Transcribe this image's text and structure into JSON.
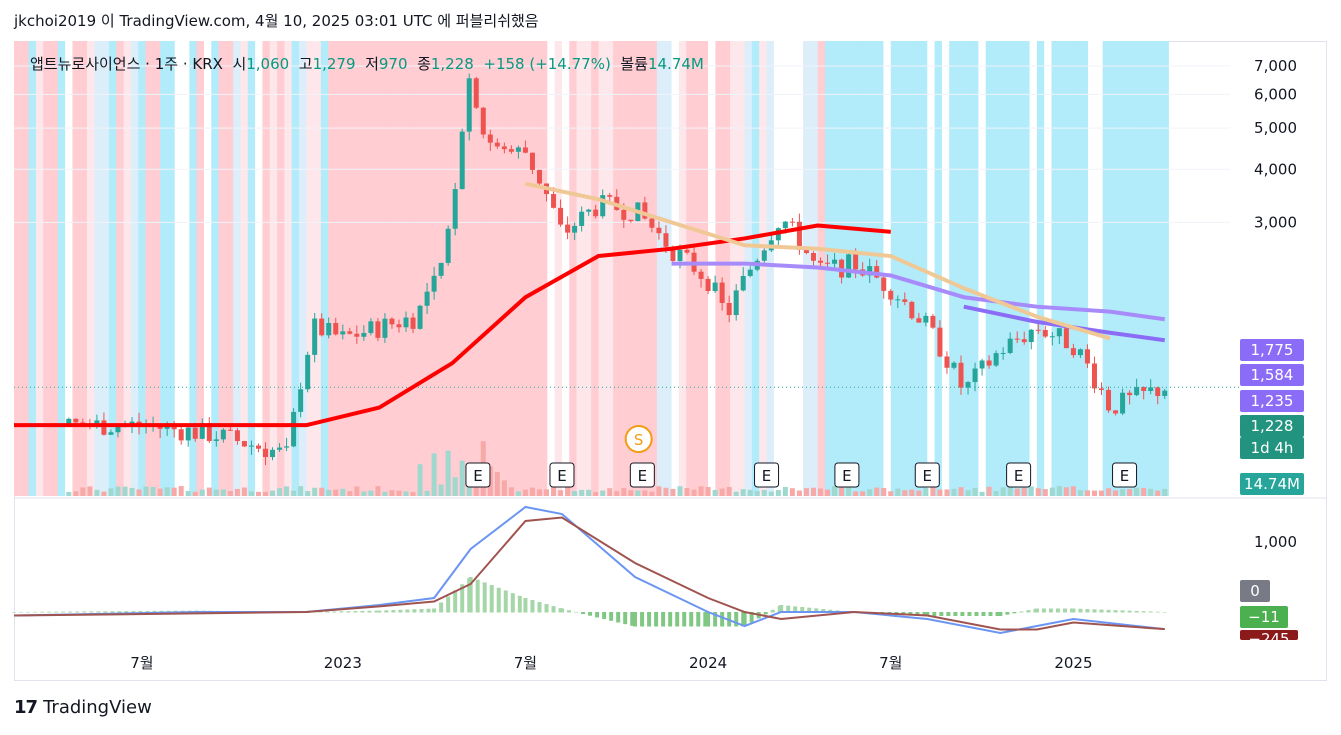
{
  "header": {
    "publish_line": "jkchoi2019 이 TradingView.com, 4월 10, 2025 03:01 UTC 에 퍼블리쉬했음"
  },
  "legend": {
    "symbol": "앱트뉴로사이언스 · 1주 · KRX",
    "open_label": "시",
    "open": "1,060",
    "high_label": "고",
    "high": "1,279",
    "low_label": "저",
    "low": "970",
    "close_label": "종",
    "close": "1,228",
    "change": "+158 (+14.77%)",
    "volume_label": "볼륨",
    "volume": "14.74M"
  },
  "price_badges": {
    "ma1": "1,775",
    "ma2": "1,584",
    "ma3": "1,235",
    "last": "1,228",
    "countdown": "1d 4h",
    "volume": "14.74M",
    "macd_zero": "0",
    "macd_hist": "−11",
    "macd_signal": "−245"
  },
  "colors": {
    "up": "#26a69a",
    "down": "#ef5350",
    "bg_blue": "#b2ebf9",
    "bg_lightblue": "#dbeefa",
    "bg_red": "#ffcdd2",
    "bg_pink": "#fde7ea",
    "ma_red": "#ff0000",
    "ma_purple": "#a78bfa",
    "ma_tan": "#f0c896",
    "ma_violet": "#8b6cf6",
    "macd": "#6b95f2",
    "signal": "#a05450",
    "hist_up": "#a5d6a7",
    "hist_down": "#81c784"
  },
  "footer": {
    "brand": "TradingView",
    "logo": "tradingview-logo"
  },
  "chart_data": {
    "type": "candlestick",
    "interval": "1주",
    "exchange": "KRX",
    "price_axis": {
      "ticks": [
        3000,
        4000,
        5000,
        6000,
        7000
      ],
      "tick_labels": [
        "3,000",
        "4,000",
        "5,000",
        "6,000",
        "7,000"
      ],
      "range": [
        700,
        7800
      ]
    },
    "time_axis": {
      "labels": [
        "7월",
        "2023",
        "7월",
        "2024",
        "7월",
        "2025"
      ]
    },
    "macd_axis": {
      "ticks": [
        1000
      ],
      "tick_labels": [
        "1,000"
      ],
      "range": [
        -400,
        1600
      ]
    },
    "price_path": {
      "times": [
        2022.25,
        2022.45,
        2022.65,
        2022.85,
        2022.92,
        2023.0,
        2023.1,
        2023.2,
        2023.27,
        2023.3,
        2023.35,
        2023.38,
        2023.42,
        2023.5,
        2023.6,
        2023.7,
        2023.8,
        2023.9,
        2024.0,
        2024.05,
        2024.1,
        2024.2,
        2024.3,
        2024.4,
        2024.5,
        2024.6,
        2024.7,
        2024.8,
        2024.9,
        2025.0,
        2025.1,
        2025.25
      ],
      "closes": [
        1000,
        1000,
        950,
        850,
        1700,
        1600,
        1700,
        1800,
        2300,
        3200,
        6800,
        5000,
        4400,
        4400,
        2800,
        3300,
        3200,
        2600,
        2200,
        1800,
        2200,
        3100,
        2300,
        2400,
        2100,
        1700,
        1200,
        1500,
        1700,
        1550,
        1100,
        1228
      ]
    },
    "ma_lines": [
      {
        "name": "",
        "color": "#ff0000",
        "times": [
          2022.1,
          2022.9,
          2023.1,
          2023.3,
          2023.5,
          2023.7,
          2023.9,
          2024.1,
          2024.3,
          2024.5
        ],
        "values": [
          1000,
          1000,
          1100,
          1400,
          2000,
          2500,
          2600,
          2750,
          2950,
          2850
        ]
      },
      {
        "name": "",
        "color": "#a78bfa",
        "times": [
          2023.9,
          2024.1,
          2024.3,
          2024.5,
          2024.7,
          2024.9,
          2025.1,
          2025.25
        ],
        "values": [
          2400,
          2400,
          2350,
          2250,
          2000,
          1900,
          1850,
          1775
        ]
      },
      {
        "name": "",
        "color": "#8b6cf6",
        "times": [
          2024.7,
          2024.9,
          2025.1,
          2025.25
        ],
        "values": [
          1900,
          1750,
          1650,
          1584
        ]
      },
      {
        "name": "",
        "color": "#f0c896",
        "times": [
          2023.5,
          2023.7,
          2023.9,
          2024.1,
          2024.3,
          2024.5,
          2024.7,
          2024.9,
          2025.1
        ],
        "values": [
          3700,
          3400,
          3000,
          2650,
          2600,
          2500,
          2100,
          1800,
          1600
        ]
      }
    ],
    "earnings_markers": {
      "label": "E",
      "times": [
        2023.37,
        2023.6,
        2023.82,
        2024.16,
        2024.38,
        2024.6,
        2024.85,
        2025.14
      ]
    },
    "split_marker": {
      "label": "S",
      "time": 2023.81
    },
    "macd": {
      "times": [
        2022.1,
        2022.6,
        2022.9,
        2023.1,
        2023.25,
        2023.35,
        2023.5,
        2023.6,
        2023.8,
        2024.0,
        2024.1,
        2024.2,
        2024.4,
        2024.6,
        2024.8,
        2024.9,
        2025.0,
        2025.25
      ],
      "macd_values": [
        -50,
        0,
        0,
        100,
        200,
        900,
        1500,
        1400,
        500,
        0,
        -200,
        0,
        0,
        -100,
        -300,
        -200,
        -100,
        -245
      ],
      "signal_values": [
        -50,
        -20,
        0,
        80,
        150,
        400,
        1300,
        1350,
        700,
        200,
        0,
        -100,
        0,
        -50,
        -250,
        -250,
        -150,
        -245
      ]
    }
  }
}
